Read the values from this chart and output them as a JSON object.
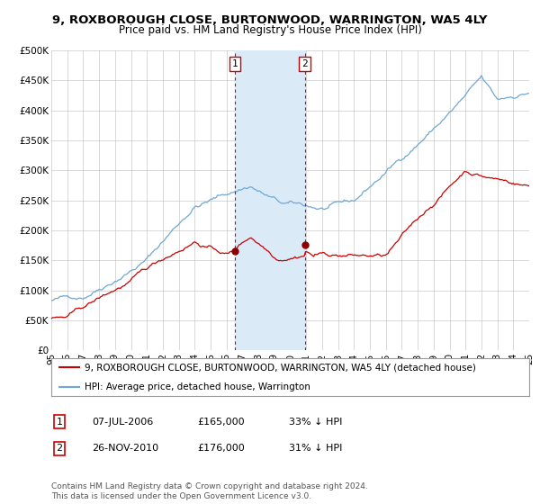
{
  "title_line1": "9, ROXBOROUGH CLOSE, BURTONWOOD, WARRINGTON, WA5 4LY",
  "title_line2": "Price paid vs. HM Land Registry's House Price Index (HPI)",
  "ylim": [
    0,
    500000
  ],
  "yticks": [
    0,
    50000,
    100000,
    150000,
    200000,
    250000,
    300000,
    350000,
    400000,
    450000,
    500000
  ],
  "ytick_labels": [
    "£0",
    "£50K",
    "£100K",
    "£150K",
    "£200K",
    "£250K",
    "£300K",
    "£350K",
    "£400K",
    "£450K",
    "£500K"
  ],
  "xmin_year": 1995,
  "xmax_year": 2025,
  "xtick_years": [
    1995,
    1996,
    1997,
    1998,
    1999,
    2000,
    2001,
    2002,
    2003,
    2004,
    2005,
    2006,
    2007,
    2008,
    2009,
    2010,
    2011,
    2012,
    2013,
    2014,
    2015,
    2016,
    2017,
    2018,
    2019,
    2020,
    2021,
    2022,
    2023,
    2024,
    2025
  ],
  "xtick_labels": [
    "95",
    "96",
    "97",
    "98",
    "99",
    "00",
    "01",
    "02",
    "03",
    "04",
    "05",
    "06",
    "07",
    "08",
    "09",
    "10",
    "11",
    "12",
    "13",
    "14",
    "15",
    "16",
    "17",
    "18",
    "19",
    "20",
    "21",
    "22",
    "23",
    "24",
    "25"
  ],
  "hpi_color": "#6fa8d4",
  "price_color": "#cc0000",
  "shade_color": "#daeaf7",
  "dashed_color": "#dd0000",
  "marker_color": "#8b0000",
  "purchase1_year": 2006.52,
  "purchase1_price": 165000,
  "purchase1_label": "1",
  "purchase2_year": 2010.91,
  "purchase2_price": 176000,
  "purchase2_label": "2",
  "legend_line1": "9, ROXBOROUGH CLOSE, BURTONWOOD, WARRINGTON, WA5 4LY (detached house)",
  "legend_line2": "HPI: Average price, detached house, Warrington",
  "annotation1_date": "07-JUL-2006",
  "annotation1_price": "£165,000",
  "annotation1_hpi": "33% ↓ HPI",
  "annotation2_date": "26-NOV-2010",
  "annotation2_price": "£176,000",
  "annotation2_hpi": "31% ↓ HPI",
  "footer": "Contains HM Land Registry data © Crown copyright and database right 2024.\nThis data is licensed under the Open Government Licence v3.0.",
  "bg_color": "#ffffff",
  "grid_color": "#bbbbbb",
  "title_fontsize": 9.5,
  "subtitle_fontsize": 8.5,
  "tick_fontsize": 7.5,
  "legend_fontsize": 7.5,
  "annotation_fontsize": 8,
  "footer_fontsize": 6.5
}
